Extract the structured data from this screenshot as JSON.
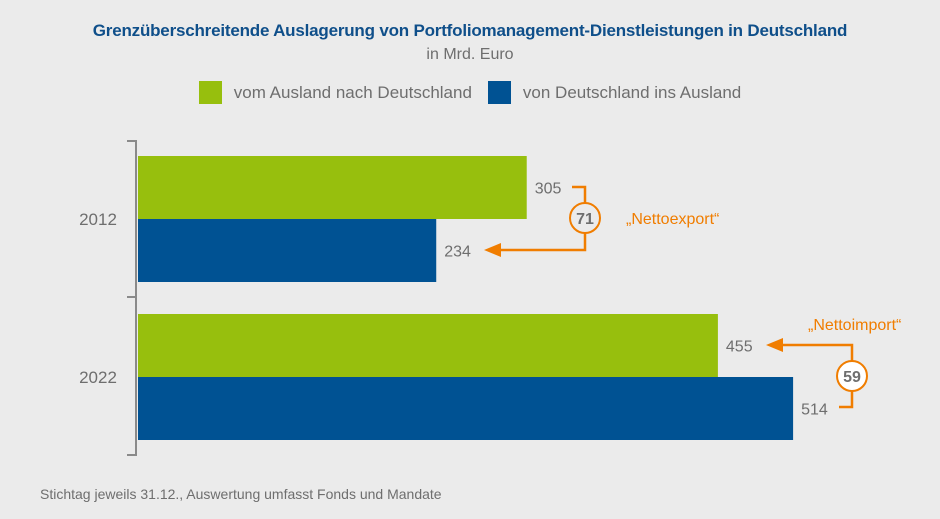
{
  "chart_data": {
    "type": "bar",
    "orientation": "horizontal",
    "title": "Grenzüberschreitende Auslagerung von Portfolio­management-Dienstleistungen in Deutschland",
    "subtitle": "in Mrd. Euro",
    "categories": [
      "2012",
      "2022"
    ],
    "series": [
      {
        "name": "vom Ausland nach Deutschland",
        "color": "#97bf0d",
        "values": [
          305,
          455
        ]
      },
      {
        "name": "von Deutschland ins Ausland",
        "color": "#005293",
        "values": [
          234,
          514
        ]
      }
    ],
    "value_labels": [
      [
        "305",
        "234"
      ],
      [
        "455",
        "514"
      ]
    ],
    "annotations": [
      {
        "category": "2012",
        "net_value": "71",
        "label": "„Nettoexport“",
        "arrow_to": "von Deutschland ins Ausland",
        "circle_fill": "none"
      },
      {
        "category": "2022",
        "net_value": "59",
        "label": "„Nettoimport“",
        "arrow_to": "vom Ausland nach Deutschland",
        "circle_fill": "#ffffff"
      }
    ],
    "xlim": [
      0,
      540
    ],
    "grid": false,
    "legend_position": "top-center",
    "xlabel": "",
    "ylabel": ""
  },
  "colors": {
    "title": "#0f4f8a",
    "accent": "#f07d00",
    "text": "#6e6e6e",
    "background": "#ebebeb"
  },
  "footnote": "Stichtag jeweils 31.12., Auswertung umfasst Fonds und Mandate"
}
